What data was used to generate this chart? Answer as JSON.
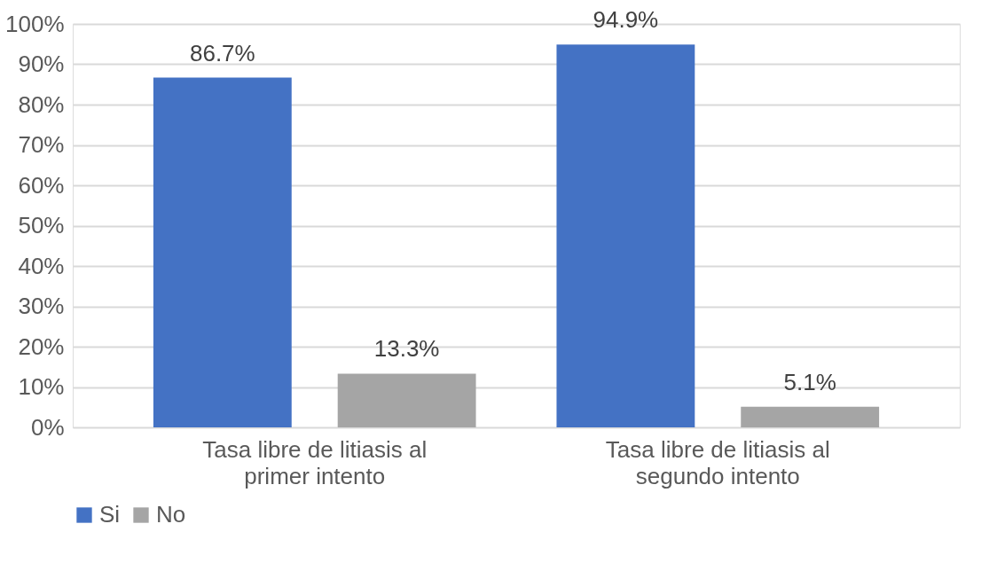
{
  "chart_data": {
    "type": "bar",
    "categories": [
      "Tasa libre de litiasis al primer intento",
      "Tasa libre de litiasis al segundo intento"
    ],
    "series": [
      {
        "name": "Si",
        "color": "#4472c4",
        "values": [
          86.7,
          94.9
        ],
        "value_labels": [
          "86.7%",
          "94.9%"
        ]
      },
      {
        "name": "No",
        "color": "#a5a5a5",
        "values": [
          13.3,
          5.1
        ],
        "value_labels": [
          "13.3%",
          "5.1%"
        ]
      }
    ],
    "ylim": [
      0,
      100
    ],
    "yticks": [
      {
        "value": 0,
        "label": "0%"
      },
      {
        "value": 10,
        "label": "10%"
      },
      {
        "value": 20,
        "label": "20%"
      },
      {
        "value": 30,
        "label": "30%"
      },
      {
        "value": 40,
        "label": "40%"
      },
      {
        "value": 50,
        "label": "50%"
      },
      {
        "value": 60,
        "label": "60%"
      },
      {
        "value": 70,
        "label": "70%"
      },
      {
        "value": 80,
        "label": "80%"
      },
      {
        "value": 90,
        "label": "90%"
      },
      {
        "value": 100,
        "label": "100%"
      }
    ],
    "grid": "y",
    "legend": "bottom"
  }
}
